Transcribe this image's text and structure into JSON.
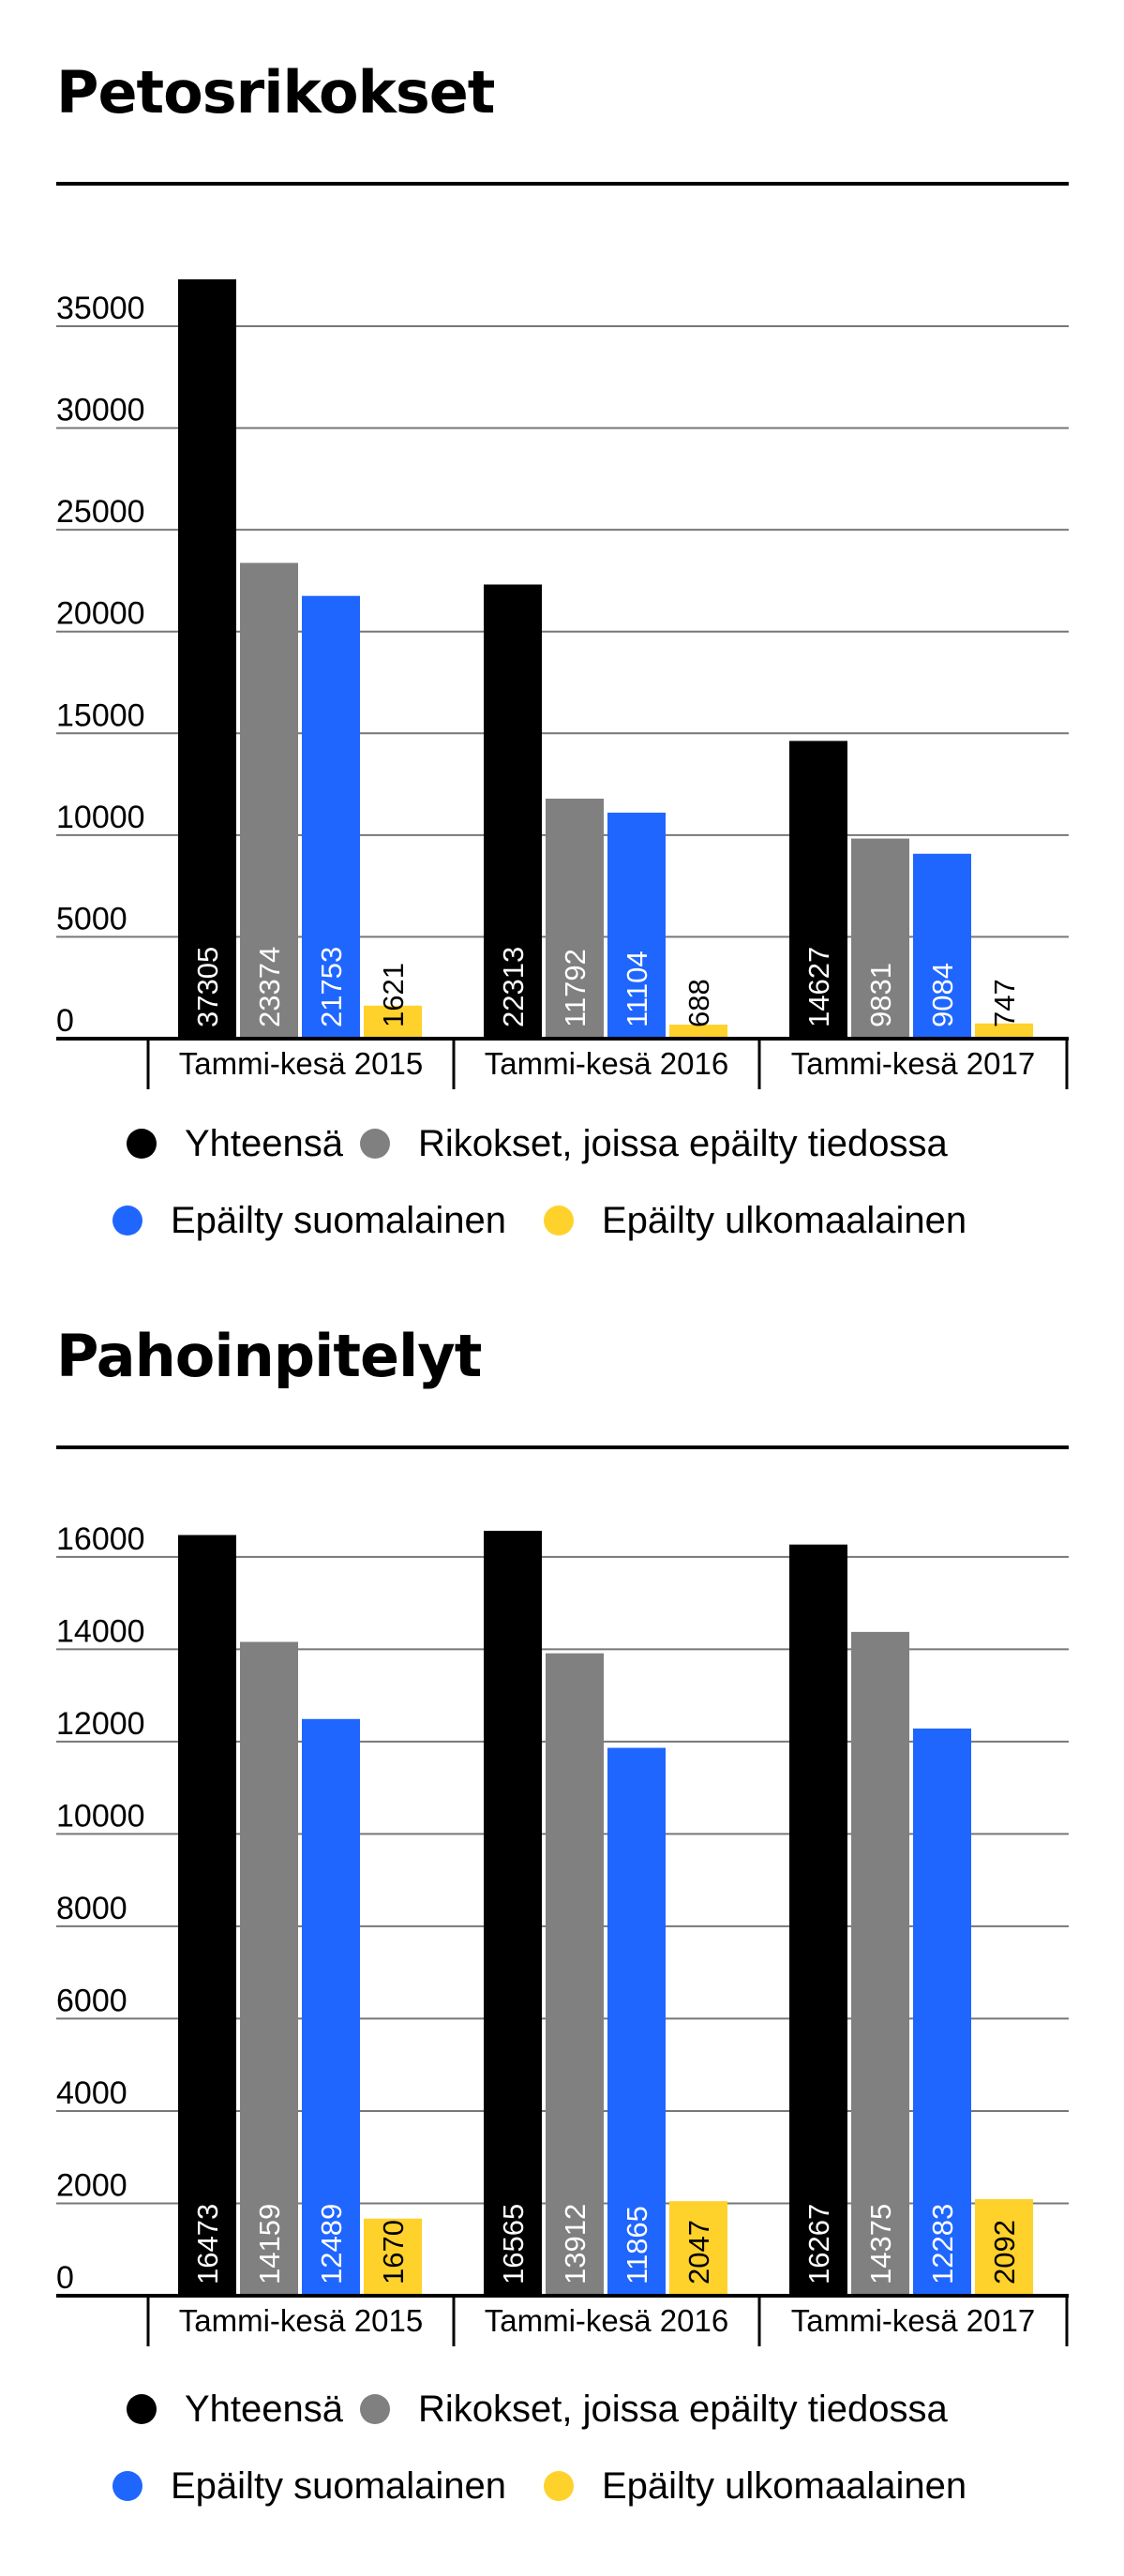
{
  "legend": {
    "total": "Yhteensä",
    "suspect_known": "Rikokset, joissa epäilty tiedossa",
    "finnish": "Epäilty suomalainen",
    "foreign": "Epäilty ulkomaalainen"
  },
  "colors": {
    "total": "#000000",
    "suspect_known": "#808080",
    "finnish": "#1f66ff",
    "foreign": "#ffd12b"
  },
  "chart_data": [
    {
      "type": "bar",
      "title": "Petosrikokset",
      "categories": [
        "Tammi-kesä 2015",
        "Tammi-kesä 2016",
        "Tammi-kesä 2017"
      ],
      "yticks": [
        "0",
        "5000",
        "10000",
        "15000",
        "20000",
        "25000",
        "30000",
        "35000"
      ],
      "ylim": [
        0,
        37305
      ],
      "grid": true,
      "legend_position": "bottom",
      "series": [
        {
          "name": "Yhteensä",
          "values": [
            37305,
            22313,
            14627
          ],
          "labels": [
            "37305",
            "22313",
            "14627"
          ]
        },
        {
          "name": "Rikokset, joissa epäilty tiedossa",
          "values": [
            23374,
            11792,
            9831
          ],
          "labels": [
            "23374",
            "11792",
            "9831"
          ]
        },
        {
          "name": "Epäilty suomalainen",
          "values": [
            21753,
            11104,
            9084
          ],
          "labels": [
            "21753",
            "11104",
            "9084"
          ]
        },
        {
          "name": "Epäilty ulkomaalainen",
          "values": [
            1621,
            688,
            747
          ],
          "labels": [
            "1621",
            "688",
            "747"
          ]
        }
      ]
    },
    {
      "type": "bar",
      "title": "Pahoinpitelyt",
      "categories": [
        "Tammi-kesä 2015",
        "Tammi-kesä 2016",
        "Tammi-kesä 2017"
      ],
      "yticks": [
        "0",
        "2000",
        "4000",
        "6000",
        "8000",
        "10000",
        "12000",
        "14000",
        "16000"
      ],
      "ylim": [
        0,
        16565
      ],
      "grid": true,
      "legend_position": "bottom",
      "series": [
        {
          "name": "Yhteensä",
          "values": [
            16473,
            16565,
            16267
          ],
          "labels": [
            "16473",
            "16565",
            "16267"
          ]
        },
        {
          "name": "Rikokset, joissa epäilty tiedossa",
          "values": [
            14159,
            13912,
            14375
          ],
          "labels": [
            "14159",
            "13912",
            "14375"
          ]
        },
        {
          "name": "Epäilty suomalainen",
          "values": [
            12489,
            11865,
            12283
          ],
          "labels": [
            "12489",
            "11865",
            "12283"
          ]
        },
        {
          "name": "Epäilty ulkomaalainen",
          "values": [
            1670,
            2047,
            2092
          ],
          "labels": [
            "1670",
            "2047",
            "2092"
          ]
        }
      ]
    }
  ]
}
